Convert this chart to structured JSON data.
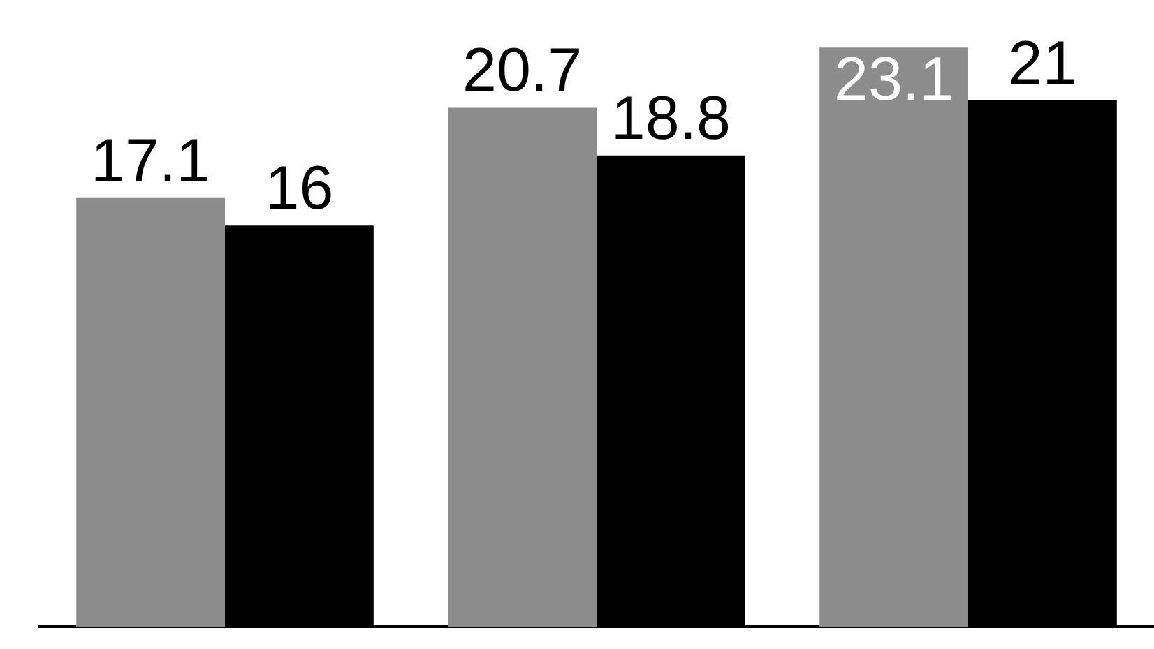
{
  "chart_data": {
    "type": "bar",
    "categories": [
      null,
      null,
      null
    ],
    "series": [
      {
        "color": "#8c8c8c",
        "values": [
          17.1,
          20.7,
          23.1
        ]
      },
      {
        "color": "#000000",
        "values": [
          16,
          18.8,
          21
        ]
      }
    ],
    "data_labels": true,
    "tick_labels": false
  }
}
